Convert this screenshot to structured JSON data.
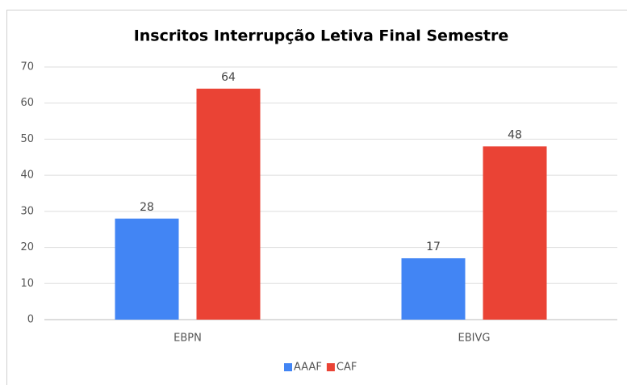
{
  "chart_data": {
    "type": "bar",
    "title": "Inscritos Interrupção Letiva Final Semestre",
    "categories": [
      "EBPN",
      "EBIVG"
    ],
    "series": [
      {
        "name": "AAAF",
        "color": "#4285f4",
        "values": [
          28,
          17
        ]
      },
      {
        "name": "CAF",
        "color": "#ea4335",
        "values": [
          64,
          48
        ]
      }
    ],
    "ylim": [
      0,
      70
    ],
    "yticks": [
      0,
      10,
      20,
      30,
      40,
      50,
      60,
      70
    ],
    "grid": true,
    "legend": "bottom"
  }
}
